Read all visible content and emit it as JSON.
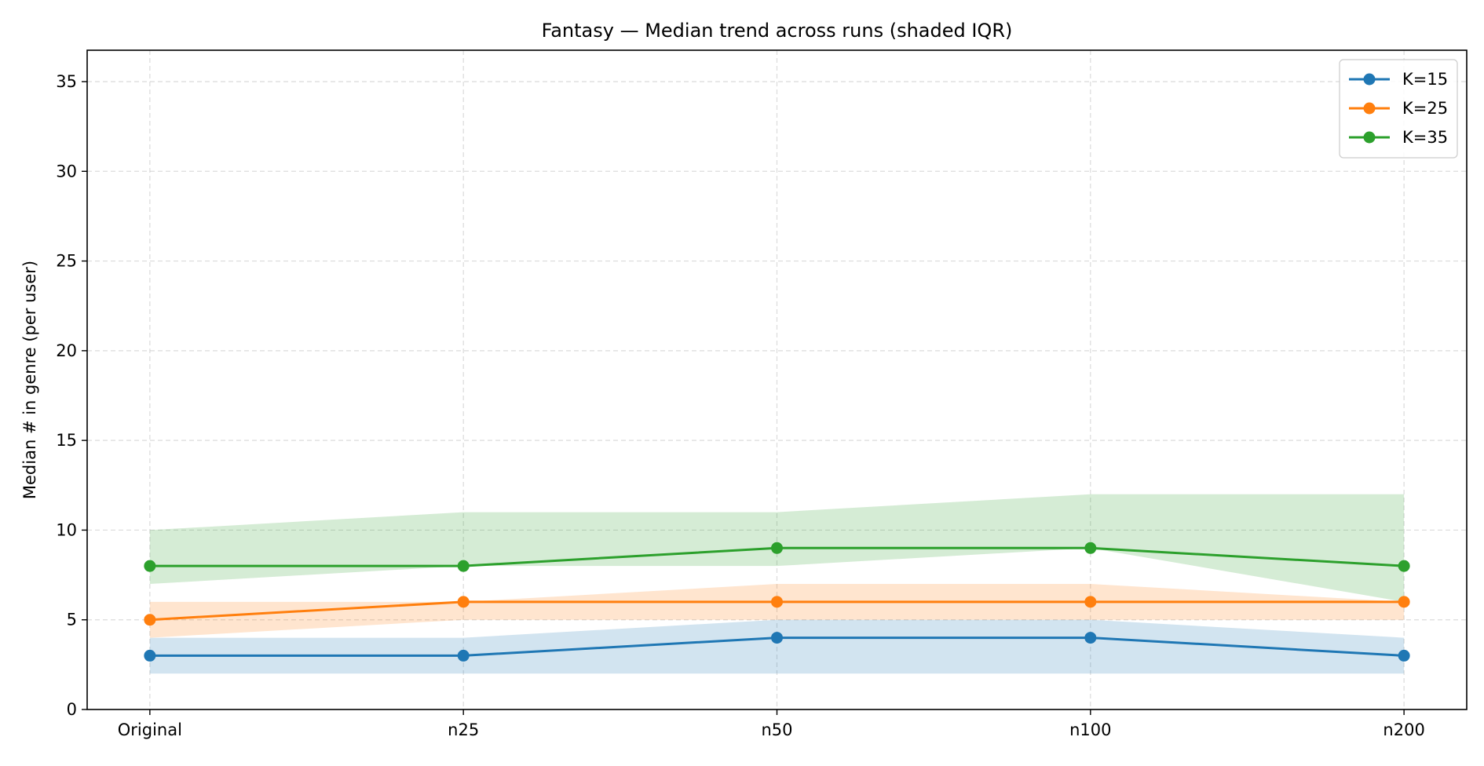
{
  "chart_data": {
    "type": "line",
    "title": "Fantasy — Median trend across runs (shaded IQR)",
    "xlabel": "",
    "ylabel": "Median # in genre (per user)",
    "categories": [
      "Original",
      "n25",
      "n50",
      "n100",
      "n200"
    ],
    "ylim": [
      0,
      36.75
    ],
    "yticks": [
      0,
      5,
      10,
      15,
      20,
      25,
      30,
      35
    ],
    "grid": true,
    "legend_position": "top-right",
    "series": [
      {
        "name": "K=15",
        "color": "#1f77b4",
        "values": [
          3,
          3,
          4,
          4,
          3
        ],
        "iqr_low": [
          2,
          2,
          2,
          2,
          2
        ],
        "iqr_high": [
          4,
          4,
          5,
          5,
          4
        ]
      },
      {
        "name": "K=25",
        "color": "#ff7f0e",
        "values": [
          5,
          6,
          6,
          6,
          6
        ],
        "iqr_low": [
          4,
          5,
          5,
          5,
          5
        ],
        "iqr_high": [
          6,
          6,
          7,
          7,
          6
        ]
      },
      {
        "name": "K=35",
        "color": "#2ca02c",
        "values": [
          8,
          8,
          9,
          9,
          8
        ],
        "iqr_low": [
          7,
          8,
          8,
          9,
          6
        ],
        "iqr_high": [
          10,
          11,
          11,
          12,
          12
        ]
      }
    ]
  }
}
